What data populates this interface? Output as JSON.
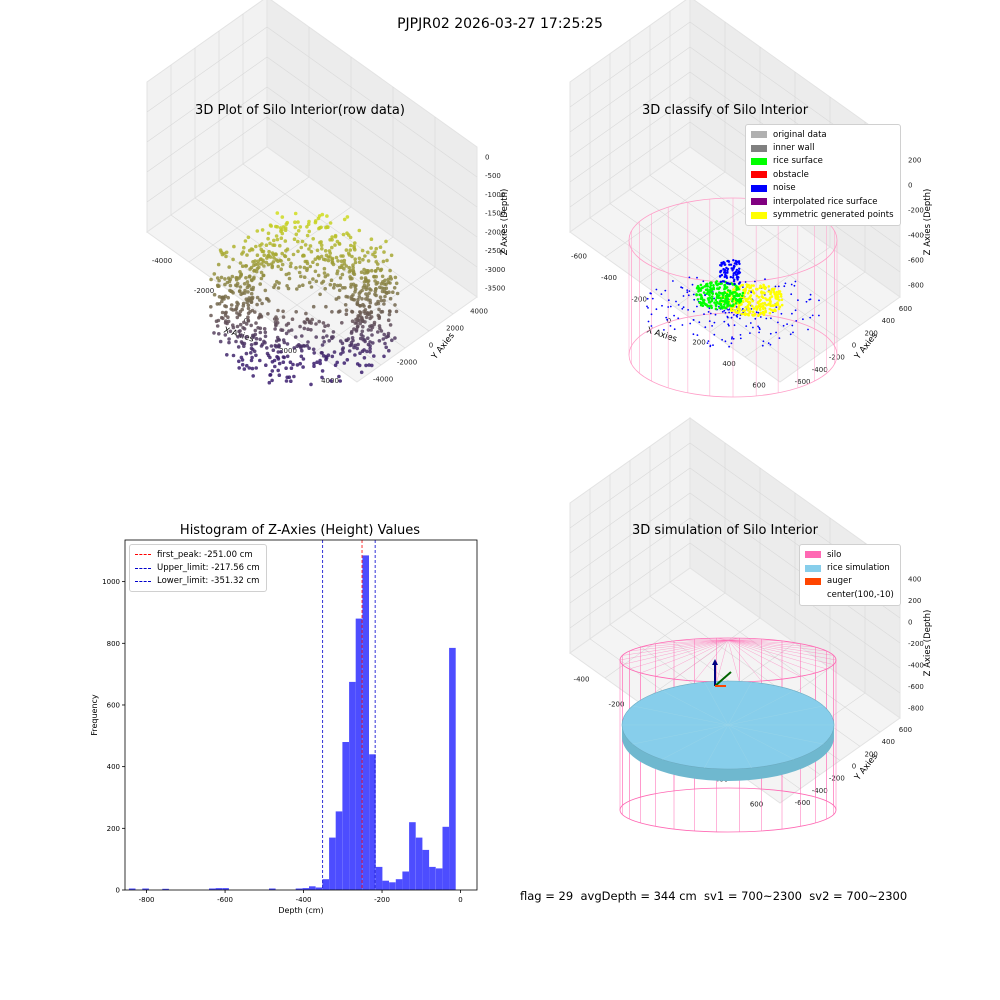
{
  "suptitle": "PJPJR02 2026-03-27 17:25:25",
  "footer": "flag = 29  avgDepth = 344 cm  sv1 = 700~2300  sv2 = 700~2300",
  "colors": {
    "raw_low": "#3b1f6e",
    "raw_high": "#d4e21a",
    "rice_surface": "#00ff00",
    "noise": "#0000ff",
    "symmetric": "#ffff00",
    "wall": "#ff9ec8",
    "silo": "#ff69b4",
    "rice_sim": "#87ceeb",
    "auger": "#ff4500",
    "hist_bar": "#4d4dff",
    "peak_line": "#ff0000",
    "limit_line": "#0000cc"
  },
  "chart_data": [
    {
      "type": "scatter",
      "title": "3D Plot of Silo Interior(row data)",
      "xlabel": "X Axies",
      "ylabel": "Y Axies",
      "zlabel": "Z Axies (Depth)",
      "x_ticks": [
        "-4000",
        "-2000",
        "0",
        "2000",
        "4000"
      ],
      "y_ticks": [
        "-4000",
        "-2000",
        "0",
        "2000",
        "4000"
      ],
      "z_ticks": [
        "0",
        "-500",
        "-1000",
        "-1500",
        "-2000",
        "-2500",
        "-3000",
        "-3500"
      ],
      "colormap": "viridis"
    },
    {
      "type": "scatter",
      "title": "3D classify of Silo Interior",
      "xlabel": "X Axies",
      "ylabel": "Y Axies",
      "zlabel": "Z Axies (Depth)",
      "x_ticks": [
        "-600",
        "-400",
        "-200",
        "0",
        "200",
        "400",
        "600"
      ],
      "y_ticks": [
        "-600",
        "-400",
        "-200",
        "0",
        "200",
        "400",
        "600"
      ],
      "z_ticks": [
        "200",
        "0",
        "-200",
        "-400",
        "-600",
        "-800"
      ],
      "legend": [
        {
          "label": "original data",
          "color": "#b0b0b0"
        },
        {
          "label": "inner wall",
          "color": "#808080"
        },
        {
          "label": "rice surface",
          "color": "#00ff00"
        },
        {
          "label": "obstacle",
          "color": "#ff0000"
        },
        {
          "label": "noise",
          "color": "#0000ff"
        },
        {
          "label": "interpolated rice surface",
          "color": "#800080"
        },
        {
          "label": "symmetric generated points",
          "color": "#ffff00"
        }
      ]
    },
    {
      "type": "bar",
      "title": "Histogram of Z-Axies (Height) Values",
      "xlabel": "Depth (cm)",
      "ylabel": "Frequency",
      "xlim": [
        -855,
        42
      ],
      "ylim": [
        0,
        1135
      ],
      "x_ticks": [
        "-800",
        "-600",
        "-400",
        "-200",
        "0"
      ],
      "y_ticks": [
        "0",
        "200",
        "400",
        "600",
        "800",
        "1000"
      ],
      "bin_width": 16.9,
      "bins": [
        [
          -845,
          5
        ],
        [
          -828,
          0
        ],
        [
          -811,
          5
        ],
        [
          -794,
          0
        ],
        [
          -777,
          0
        ],
        [
          -760,
          4
        ],
        [
          -743,
          0
        ],
        [
          -726,
          0
        ],
        [
          -709,
          0
        ],
        [
          -692,
          0
        ],
        [
          -675,
          0
        ],
        [
          -658,
          0
        ],
        [
          -641,
          5
        ],
        [
          -624,
          6
        ],
        [
          -607,
          6
        ],
        [
          -590,
          0
        ],
        [
          -573,
          0
        ],
        [
          -556,
          0
        ],
        [
          -539,
          0
        ],
        [
          -522,
          0
        ],
        [
          -505,
          0
        ],
        [
          -488,
          5
        ],
        [
          -471,
          0
        ],
        [
          -454,
          0
        ],
        [
          -437,
          0
        ],
        [
          -420,
          5
        ],
        [
          -403,
          6
        ],
        [
          -386,
          12
        ],
        [
          -369,
          8
        ],
        [
          -352,
          35
        ],
        [
          -335,
          170
        ],
        [
          -318,
          255
        ],
        [
          -301,
          480
        ],
        [
          -284,
          675
        ],
        [
          -267,
          880
        ],
        [
          -250,
          1085
        ],
        [
          -233,
          440
        ],
        [
          -216,
          75
        ],
        [
          -199,
          30
        ],
        [
          -182,
          25
        ],
        [
          -165,
          35
        ],
        [
          -148,
          60
        ],
        [
          -131,
          220
        ],
        [
          -114,
          170
        ],
        [
          -97,
          130
        ],
        [
          -80,
          75
        ],
        [
          -63,
          70
        ],
        [
          -46,
          205
        ],
        [
          -29,
          785
        ]
      ],
      "lines": [
        {
          "label": "first_peak: -251.00 cm",
          "value": -251.0,
          "color": "#ff0000"
        },
        {
          "label": "Upper_limit: -217.56 cm",
          "value": -217.56,
          "color": "#0000cc"
        },
        {
          "label": "Lower_limit: -351.32 cm",
          "value": -351.32,
          "color": "#0000cc"
        }
      ]
    },
    {
      "type": "scatter",
      "title": "3D simulation of Silo Interior",
      "xlabel": "X Axies",
      "ylabel": "Y Axies",
      "zlabel": "Z Axies (Depth)",
      "x_ticks": [
        "-400",
        "-200",
        "0",
        "200",
        "400",
        "600"
      ],
      "y_ticks": [
        "-600",
        "-400",
        "-200",
        "0",
        "200",
        "400",
        "600"
      ],
      "z_ticks": [
        "400",
        "200",
        "0",
        "-200",
        "-400",
        "-600",
        "-800"
      ],
      "legend": [
        {
          "label": "silo",
          "color": "#ff69b4"
        },
        {
          "label": "rice simulation",
          "color": "#87ceeb"
        },
        {
          "label": "auger",
          "color": "#ff4500"
        },
        {
          "label": "center(100,-10)",
          "color": ""
        }
      ]
    }
  ]
}
